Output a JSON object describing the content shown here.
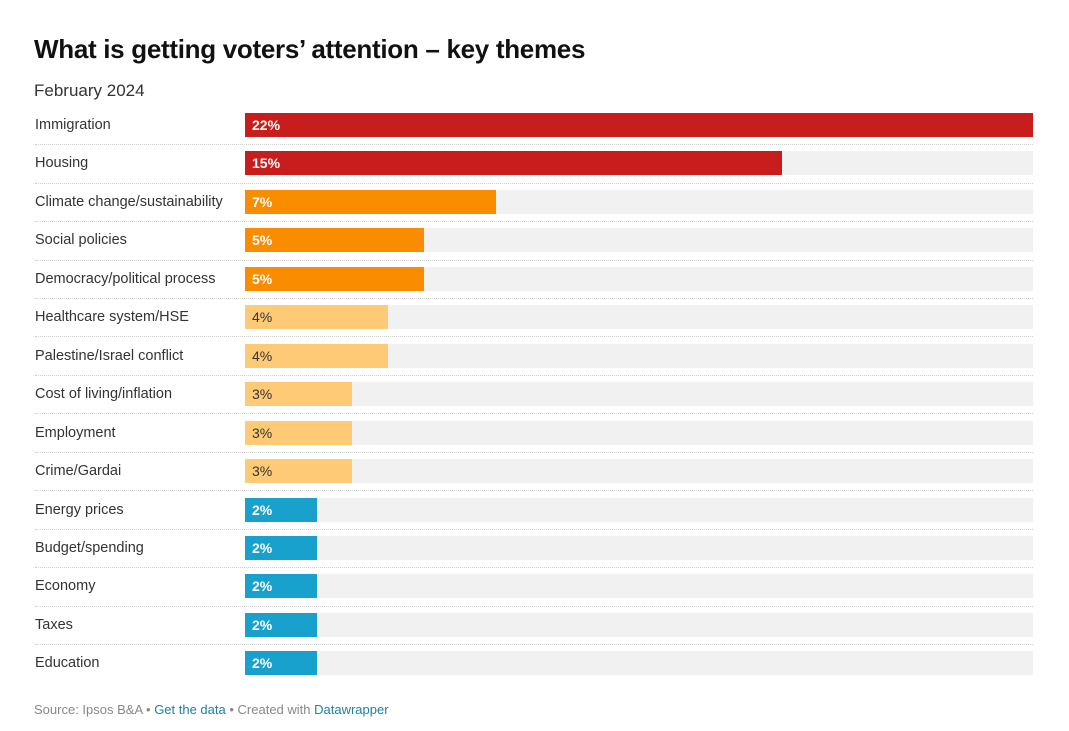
{
  "chart_data": {
    "type": "bar",
    "orientation": "horizontal",
    "title": "What is getting voters’ attention – key themes",
    "subtitle": "February 2024",
    "xlabel": "",
    "ylabel": "",
    "xlim": [
      0,
      22
    ],
    "unit": "%",
    "grid": false,
    "legend": "none",
    "categories": [
      "Immigration",
      "Housing",
      "Climate change/sustainability",
      "Social policies",
      "Democracy/political process",
      "Healthcare system/HSE",
      "Palestine/Israel conflict",
      "Cost of living/inflation",
      "Employment",
      "Crime/Gardai",
      "Energy prices",
      "Budget/spending",
      "Economy",
      "Taxes",
      "Education"
    ],
    "values": [
      22,
      15,
      7,
      5,
      5,
      4,
      4,
      3,
      3,
      3,
      2,
      2,
      2,
      2,
      2
    ],
    "value_labels": [
      "22%",
      "15%",
      "7%",
      "5%",
      "5%",
      "4%",
      "4%",
      "3%",
      "3%",
      "3%",
      "2%",
      "2%",
      "2%",
      "2%",
      "2%"
    ],
    "colors": [
      "#c71e1d",
      "#c71e1d",
      "#fa8c00",
      "#fa8c00",
      "#fa8c00",
      "#ffca76",
      "#ffca76",
      "#ffca76",
      "#ffca76",
      "#ffca76",
      "#18a1cd",
      "#18a1cd",
      "#18a1cd",
      "#18a1cd",
      "#18a1cd"
    ],
    "label_styles": [
      "light",
      "light",
      "light",
      "light",
      "light",
      "dark",
      "dark",
      "dark",
      "dark",
      "dark",
      "light",
      "light",
      "light",
      "light",
      "light"
    ],
    "background_bar_color": "#f1f1f1"
  },
  "footer": {
    "source_text": "Source: Ipsos B&A",
    "separator": " • ",
    "get_data_label": "Get the data",
    "created_with_text": "Created with ",
    "datawrapper_label": "Datawrapper",
    "link_color": "#1d81a2"
  }
}
